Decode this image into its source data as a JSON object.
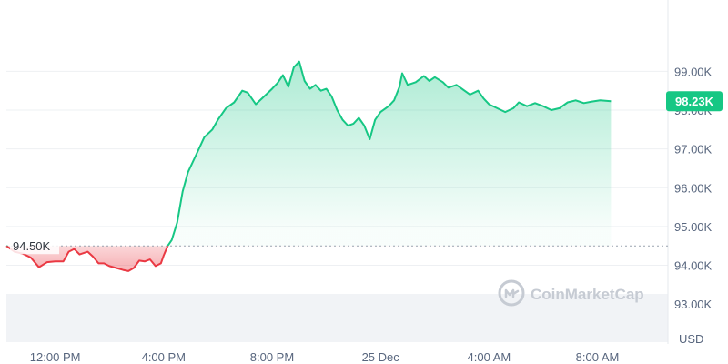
{
  "chart_data": {
    "type": "area",
    "currency_label": "USD",
    "watermark": "CoinMarketCap",
    "reference_price": 94.5,
    "reference_label": "94.50K",
    "current_price": 98.23,
    "current_label": "98.23K",
    "ylim": [
      92.3,
      99.9
    ],
    "y_ticks": [
      {
        "value": 93,
        "label": "93.00K"
      },
      {
        "value": 94,
        "label": "94.00K"
      },
      {
        "value": 95,
        "label": "95.00K"
      },
      {
        "value": 96,
        "label": "96.00K"
      },
      {
        "value": 97,
        "label": "97.00K"
      },
      {
        "value": 98,
        "label": "98.00K"
      },
      {
        "value": 99,
        "label": "99.00K"
      }
    ],
    "x_range_hours": [
      -1.8,
      22.6
    ],
    "x_ticks": [
      {
        "value": 0,
        "label": "12:00 PM"
      },
      {
        "value": 4,
        "label": "4:00 PM"
      },
      {
        "value": 8,
        "label": "8:00 PM"
      },
      {
        "value": 12,
        "label": "25 Dec"
      },
      {
        "value": 16,
        "label": "4:00 AM"
      },
      {
        "value": 20,
        "label": "8:00 AM"
      }
    ],
    "colors": {
      "up": "#16c784",
      "down": "#ea3943",
      "badge": "#16c784"
    },
    "series": [
      {
        "values": [
          [
            -1.8,
            94.5
          ],
          [
            -1.5,
            94.35
          ],
          [
            -1.2,
            94.3
          ],
          [
            -0.9,
            94.2
          ],
          [
            -0.6,
            93.95
          ],
          [
            -0.3,
            94.08
          ],
          [
            0.0,
            94.1
          ],
          [
            0.3,
            94.1
          ],
          [
            0.5,
            94.35
          ],
          [
            0.7,
            94.42
          ],
          [
            0.9,
            94.28
          ],
          [
            1.2,
            94.35
          ],
          [
            1.4,
            94.22
          ],
          [
            1.6,
            94.05
          ],
          [
            1.8,
            94.05
          ],
          [
            2.0,
            93.98
          ],
          [
            2.3,
            93.92
          ],
          [
            2.5,
            93.88
          ],
          [
            2.7,
            93.85
          ],
          [
            2.9,
            93.93
          ],
          [
            3.1,
            94.12
          ],
          [
            3.3,
            94.1
          ],
          [
            3.5,
            94.15
          ],
          [
            3.7,
            93.98
          ],
          [
            3.9,
            94.05
          ],
          [
            4.0,
            94.25
          ],
          [
            4.15,
            94.5
          ],
          [
            4.3,
            94.65
          ],
          [
            4.5,
            95.1
          ],
          [
            4.7,
            95.9
          ],
          [
            4.9,
            96.4
          ],
          [
            5.2,
            96.85
          ],
          [
            5.5,
            97.3
          ],
          [
            5.8,
            97.5
          ],
          [
            6.0,
            97.75
          ],
          [
            6.3,
            98.05
          ],
          [
            6.6,
            98.2
          ],
          [
            6.9,
            98.5
          ],
          [
            7.1,
            98.45
          ],
          [
            7.4,
            98.15
          ],
          [
            7.7,
            98.35
          ],
          [
            8.0,
            98.55
          ],
          [
            8.2,
            98.7
          ],
          [
            8.4,
            98.9
          ],
          [
            8.6,
            98.6
          ],
          [
            8.8,
            99.1
          ],
          [
            9.0,
            99.25
          ],
          [
            9.2,
            98.75
          ],
          [
            9.4,
            98.55
          ],
          [
            9.6,
            98.65
          ],
          [
            9.8,
            98.5
          ],
          [
            10.0,
            98.55
          ],
          [
            10.2,
            98.35
          ],
          [
            10.4,
            98.0
          ],
          [
            10.6,
            97.75
          ],
          [
            10.8,
            97.6
          ],
          [
            11.0,
            97.65
          ],
          [
            11.2,
            97.8
          ],
          [
            11.4,
            97.6
          ],
          [
            11.6,
            97.25
          ],
          [
            11.8,
            97.75
          ],
          [
            12.0,
            97.95
          ],
          [
            12.3,
            98.1
          ],
          [
            12.5,
            98.25
          ],
          [
            12.7,
            98.6
          ],
          [
            12.8,
            98.95
          ],
          [
            13.0,
            98.65
          ],
          [
            13.3,
            98.72
          ],
          [
            13.6,
            98.88
          ],
          [
            13.8,
            98.75
          ],
          [
            14.0,
            98.85
          ],
          [
            14.3,
            98.72
          ],
          [
            14.5,
            98.58
          ],
          [
            14.8,
            98.65
          ],
          [
            15.0,
            98.55
          ],
          [
            15.3,
            98.4
          ],
          [
            15.6,
            98.5
          ],
          [
            15.8,
            98.3
          ],
          [
            16.0,
            98.15
          ],
          [
            16.3,
            98.05
          ],
          [
            16.6,
            97.95
          ],
          [
            16.9,
            98.05
          ],
          [
            17.1,
            98.2
          ],
          [
            17.4,
            98.1
          ],
          [
            17.7,
            98.18
          ],
          [
            18.0,
            98.1
          ],
          [
            18.3,
            98.0
          ],
          [
            18.6,
            98.05
          ],
          [
            18.9,
            98.2
          ],
          [
            19.2,
            98.25
          ],
          [
            19.5,
            98.18
          ],
          [
            19.8,
            98.22
          ],
          [
            20.1,
            98.25
          ],
          [
            20.3,
            98.24
          ],
          [
            20.5,
            98.23
          ]
        ]
      }
    ]
  }
}
